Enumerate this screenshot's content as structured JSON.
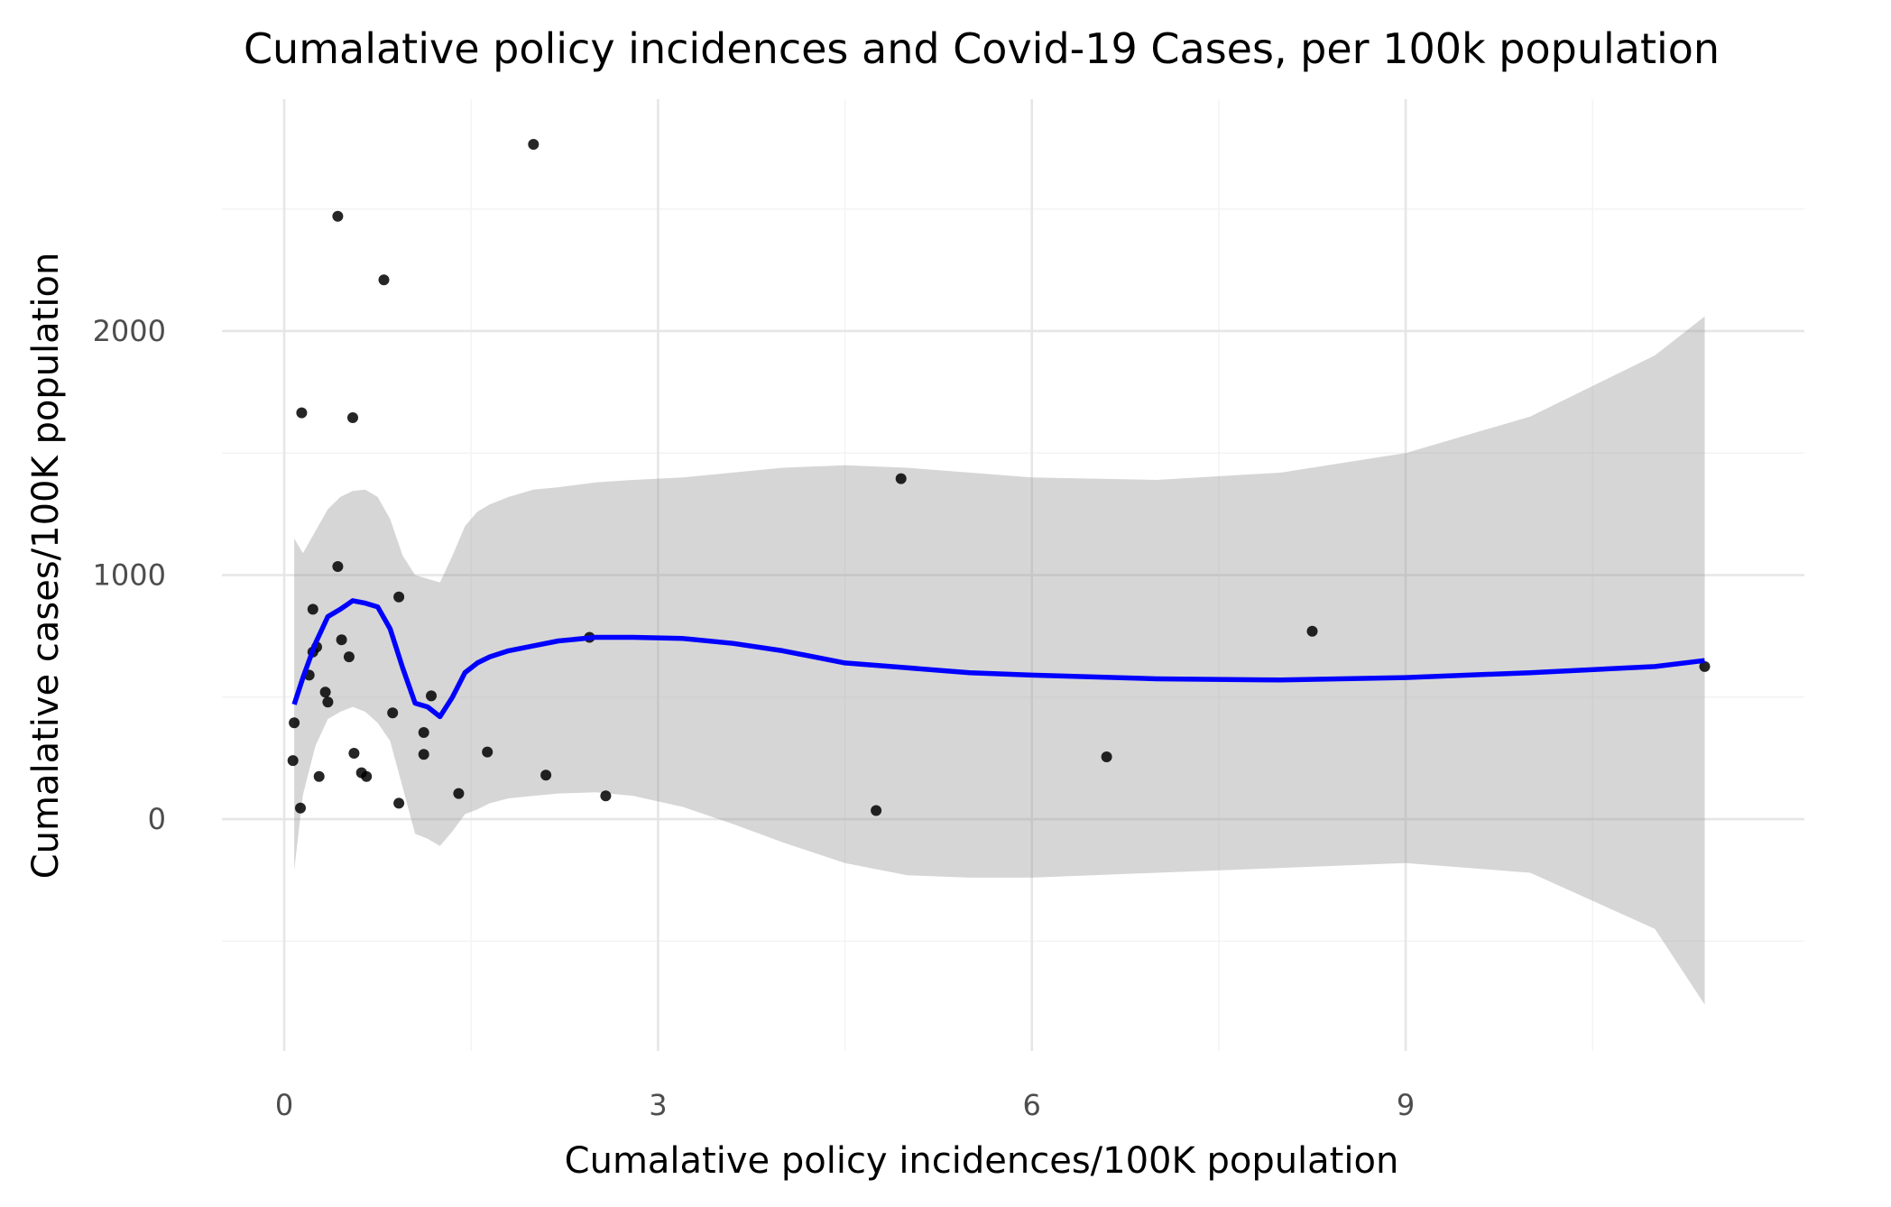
{
  "chart_data": {
    "type": "scatter",
    "title": "Cumalative policy incidences and Covid-19 Cases, per 100k population",
    "xlabel": "Cumalative policy incidences/100K population",
    "ylabel": "Cumalative cases/100K population",
    "xlim": [
      -0.5,
      12.2
    ],
    "ylim": [
      -950,
      2950
    ],
    "x_ticks": [
      0,
      3,
      6,
      9
    ],
    "x_tick_labels": [
      "0",
      "3",
      "6",
      "9"
    ],
    "x_minor_ticks": [
      1.5,
      4.5,
      7.5,
      10.5
    ],
    "y_ticks": [
      0,
      1000,
      2000
    ],
    "y_tick_labels": [
      "0",
      "1000",
      "2000"
    ],
    "y_minor_ticks": [
      -500,
      500,
      1500,
      2500
    ],
    "grid": true,
    "legend": "none",
    "colors": {
      "points": "#000000",
      "smooth_line": "#0000ff",
      "confidence_band": "#999999"
    },
    "points": [
      {
        "x": 2.0,
        "y": 2765
      },
      {
        "x": 0.43,
        "y": 2470
      },
      {
        "x": 0.8,
        "y": 2210
      },
      {
        "x": 0.14,
        "y": 1665
      },
      {
        "x": 0.55,
        "y": 1645
      },
      {
        "x": 4.95,
        "y": 1395
      },
      {
        "x": 0.43,
        "y": 1035
      },
      {
        "x": 0.92,
        "y": 910
      },
      {
        "x": 0.23,
        "y": 860
      },
      {
        "x": 0.23,
        "y": 685
      },
      {
        "x": 0.26,
        "y": 705
      },
      {
        "x": 0.46,
        "y": 735
      },
      {
        "x": 0.52,
        "y": 665
      },
      {
        "x": 0.2,
        "y": 590
      },
      {
        "x": 0.33,
        "y": 520
      },
      {
        "x": 0.35,
        "y": 480
      },
      {
        "x": 2.45,
        "y": 745
      },
      {
        "x": 8.25,
        "y": 770
      },
      {
        "x": 11.4,
        "y": 625
      },
      {
        "x": 0.87,
        "y": 435
      },
      {
        "x": 1.12,
        "y": 355
      },
      {
        "x": 1.18,
        "y": 505
      },
      {
        "x": 0.08,
        "y": 395
      },
      {
        "x": 0.56,
        "y": 270
      },
      {
        "x": 1.12,
        "y": 265
      },
      {
        "x": 1.63,
        "y": 275
      },
      {
        "x": 6.6,
        "y": 255
      },
      {
        "x": 0.07,
        "y": 240
      },
      {
        "x": 0.62,
        "y": 190
      },
      {
        "x": 0.66,
        "y": 175
      },
      {
        "x": 0.28,
        "y": 175
      },
      {
        "x": 2.1,
        "y": 180
      },
      {
        "x": 1.4,
        "y": 105
      },
      {
        "x": 2.58,
        "y": 95
      },
      {
        "x": 0.92,
        "y": 65
      },
      {
        "x": 0.13,
        "y": 45
      },
      {
        "x": 4.75,
        "y": 35
      }
    ],
    "smooth": {
      "x": [
        0.08,
        0.15,
        0.25,
        0.35,
        0.45,
        0.55,
        0.65,
        0.75,
        0.85,
        0.95,
        1.05,
        1.15,
        1.25,
        1.35,
        1.45,
        1.55,
        1.65,
        1.8,
        2.0,
        2.2,
        2.5,
        2.8,
        3.2,
        3.6,
        4.0,
        4.5,
        5.0,
        5.5,
        6.0,
        7.0,
        8.0,
        9.0,
        10.0,
        11.0,
        11.4
      ],
      "y": [
        470,
        580,
        720,
        830,
        860,
        895,
        885,
        870,
        780,
        620,
        475,
        460,
        420,
        500,
        600,
        640,
        665,
        690,
        710,
        730,
        745,
        745,
        740,
        720,
        690,
        640,
        620,
        600,
        590,
        575,
        570,
        580,
        600,
        625,
        650
      ],
      "lower": [
        -210,
        100,
        300,
        410,
        440,
        460,
        440,
        395,
        320,
        130,
        -60,
        -80,
        -110,
        -50,
        20,
        40,
        65,
        85,
        95,
        105,
        110,
        95,
        50,
        -20,
        -95,
        -180,
        -230,
        -240,
        -240,
        -220,
        -200,
        -180,
        -220,
        -450,
        -760
      ],
      "upper": [
        1150,
        1090,
        1180,
        1270,
        1320,
        1345,
        1350,
        1320,
        1230,
        1080,
        1000,
        985,
        970,
        1080,
        1200,
        1260,
        1290,
        1320,
        1350,
        1360,
        1380,
        1390,
        1400,
        1420,
        1440,
        1450,
        1440,
        1420,
        1400,
        1390,
        1420,
        1500,
        1650,
        1900,
        2060
      ]
    }
  }
}
